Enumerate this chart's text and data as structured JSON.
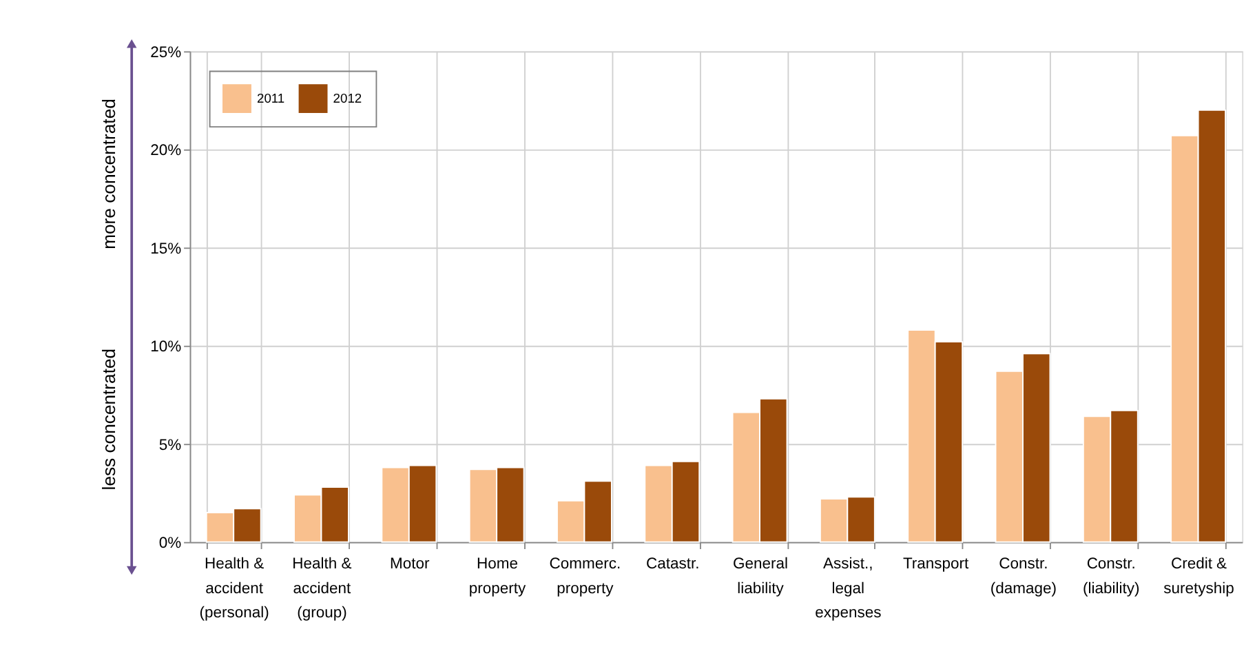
{
  "chart_data": {
    "type": "bar",
    "categories": [
      "Health & accident (personal)",
      "Health & accident (group)",
      "Motor",
      "Home property",
      "Commerc. property",
      "Catastr.",
      "General liability",
      "Assist., legal expenses",
      "Transport",
      "Constr. (damage)",
      "Constr. (liability)",
      "Credit & suretyship"
    ],
    "series": [
      {
        "name": "2011",
        "color": "#f9c08e",
        "values": [
          1.5,
          2.4,
          3.8,
          3.7,
          2.1,
          3.9,
          6.6,
          2.2,
          10.8,
          8.7,
          6.4,
          20.7
        ]
      },
      {
        "name": "2012",
        "color": "#9a4a0a",
        "values": [
          1.7,
          2.8,
          3.9,
          3.8,
          3.1,
          4.1,
          7.3,
          2.3,
          10.2,
          9.6,
          6.7,
          22.0
        ]
      }
    ],
    "ylim": [
      0,
      25
    ],
    "yticks": [
      {
        "value": 0,
        "label": "0%"
      },
      {
        "value": 5,
        "label": "5%"
      },
      {
        "value": 10,
        "label": "10%"
      },
      {
        "value": 15,
        "label": "15%"
      },
      {
        "value": 20,
        "label": "20%"
      },
      {
        "value": 25,
        "label": "25%"
      }
    ],
    "annotations": [
      "less concentrated",
      "more concentrated"
    ],
    "grid": true,
    "legend": "top left"
  }
}
